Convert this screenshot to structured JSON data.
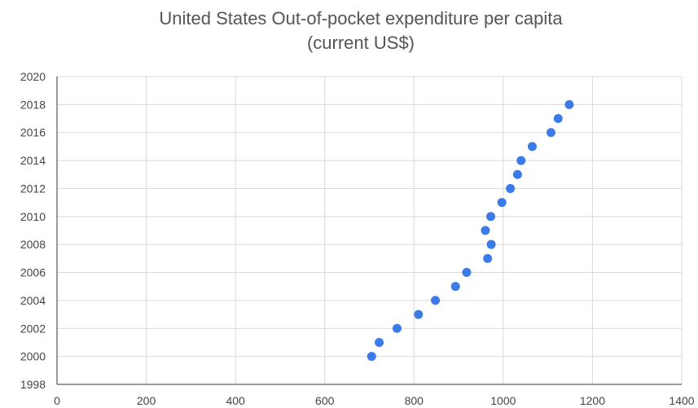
{
  "chart_data": {
    "type": "scatter",
    "title": "United States Out-of-pocket expenditure per capita",
    "subtitle": "(current US$)",
    "xlabel": "",
    "ylabel": "",
    "xlim": [
      0,
      1400
    ],
    "ylim": [
      1998,
      2020
    ],
    "x_ticks": [
      "0",
      "200",
      "400",
      "600",
      "800",
      "1000",
      "1200",
      "1400"
    ],
    "y_ticks": [
      "1998",
      "2000",
      "2002",
      "2004",
      "2006",
      "2008",
      "2010",
      "2012",
      "2014",
      "2016",
      "2018",
      "2020"
    ],
    "grid": true,
    "legend": "none",
    "point_color": "#3b7be8",
    "points": [
      {
        "x": 705,
        "y": 2000
      },
      {
        "x": 722,
        "y": 2001
      },
      {
        "x": 762,
        "y": 2002
      },
      {
        "x": 810,
        "y": 2003
      },
      {
        "x": 848,
        "y": 2004
      },
      {
        "x": 893,
        "y": 2005
      },
      {
        "x": 918,
        "y": 2006
      },
      {
        "x": 965,
        "y": 2007
      },
      {
        "x": 973,
        "y": 2008
      },
      {
        "x": 960,
        "y": 2009
      },
      {
        "x": 972,
        "y": 2010
      },
      {
        "x": 997,
        "y": 2011
      },
      {
        "x": 1016,
        "y": 2012
      },
      {
        "x": 1032,
        "y": 2013
      },
      {
        "x": 1040,
        "y": 2014
      },
      {
        "x": 1065,
        "y": 2015
      },
      {
        "x": 1107,
        "y": 2016
      },
      {
        "x": 1123,
        "y": 2017
      },
      {
        "x": 1148,
        "y": 2018
      }
    ]
  }
}
